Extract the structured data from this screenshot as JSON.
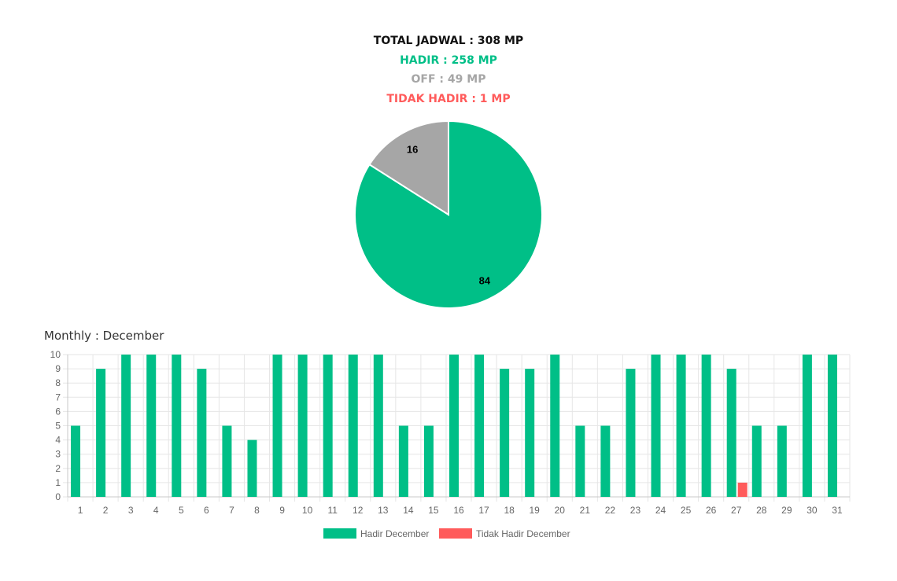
{
  "summary": {
    "total": "TOTAL JADWAL : 308 MP",
    "hadir": "HADIR : 258 MP",
    "off": "OFF : 49 MP",
    "tidak_hadir": "TIDAK HADIR : 1 MP"
  },
  "colors": {
    "total": "#111111",
    "hadir": "#00bf87",
    "off": "#a6a6a6",
    "tidak_hadir": "#ff5b5b",
    "grid": "#e6e6e6",
    "axis_text": "#666666"
  },
  "monthly_title": "Monthly : December",
  "chart_data": [
    {
      "type": "pie",
      "labels": [
        "Hadir",
        "Off"
      ],
      "values": [
        84,
        16
      ],
      "data_labels": [
        "84",
        "16"
      ],
      "colors": [
        "#00bf87",
        "#a6a6a6"
      ]
    },
    {
      "type": "bar",
      "title": "Monthly : December",
      "categories": [
        "1",
        "2",
        "3",
        "4",
        "5",
        "6",
        "7",
        "8",
        "9",
        "10",
        "11",
        "12",
        "13",
        "14",
        "15",
        "16",
        "17",
        "18",
        "19",
        "20",
        "21",
        "22",
        "23",
        "24",
        "25",
        "26",
        "27",
        "28",
        "29",
        "30",
        "31"
      ],
      "series": [
        {
          "name": "Hadir December",
          "color": "#00bf87",
          "values": [
            5,
            9,
            10,
            10,
            10,
            9,
            5,
            4,
            10,
            10,
            10,
            10,
            10,
            5,
            5,
            10,
            10,
            9,
            9,
            10,
            5,
            5,
            9,
            10,
            10,
            10,
            9,
            5,
            5,
            10,
            10
          ]
        },
        {
          "name": "Tidak Hadir December",
          "color": "#ff5b5b",
          "values": [
            0,
            0,
            0,
            0,
            0,
            0,
            0,
            0,
            0,
            0,
            0,
            0,
            0,
            0,
            0,
            0,
            0,
            0,
            0,
            0,
            0,
            0,
            0,
            0,
            0,
            0,
            1,
            0,
            0,
            0,
            0
          ]
        }
      ],
      "ylim": [
        0,
        10
      ],
      "yticks": [
        0,
        1,
        2,
        3,
        4,
        5,
        6,
        7,
        8,
        9,
        10
      ],
      "legend_position": "bottom",
      "grid": true
    }
  ]
}
